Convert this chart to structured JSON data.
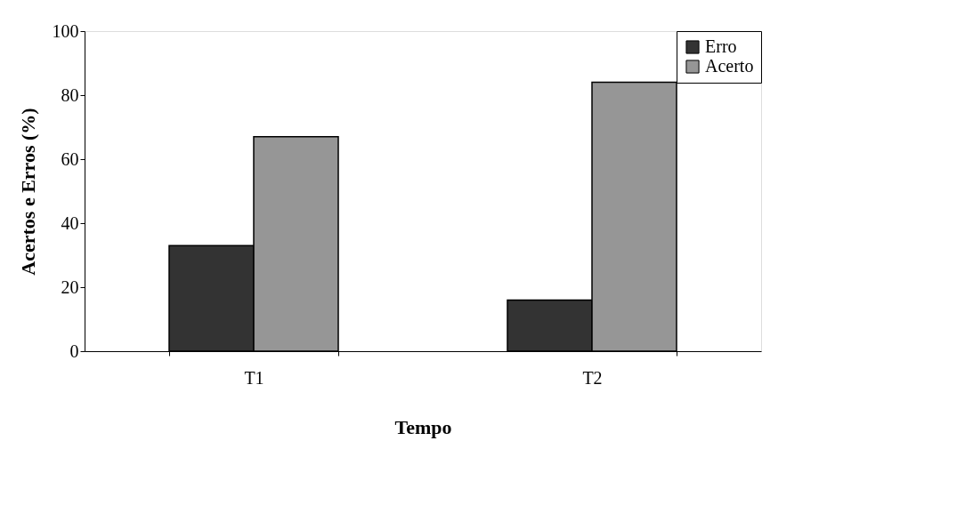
{
  "chart_data": {
    "type": "bar",
    "xlabel": "Tempo",
    "ylabel": "Acertos e Erros (%)",
    "categories": [
      "T1",
      "T2"
    ],
    "series": [
      {
        "name": "Erro",
        "color": "#333333",
        "values": [
          33,
          16
        ]
      },
      {
        "name": "Acerto",
        "color": "#969696",
        "values": [
          67,
          84
        ]
      }
    ],
    "ylim": [
      0,
      100
    ],
    "yticks": [
      0,
      20,
      40,
      60,
      80,
      100
    ],
    "grid": false,
    "legend": "top right"
  }
}
